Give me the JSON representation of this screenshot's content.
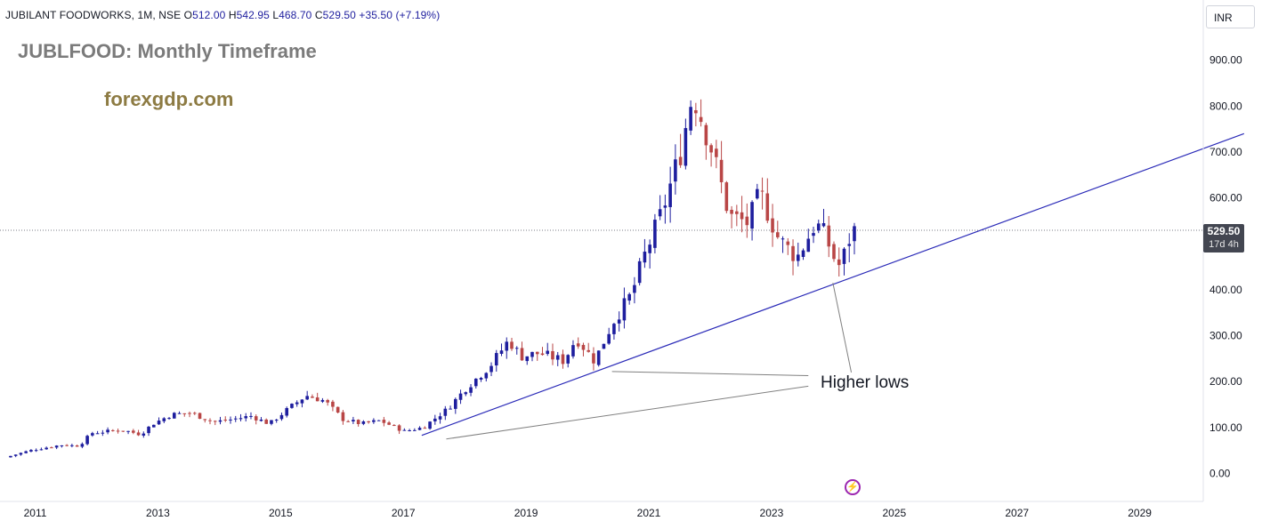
{
  "header": {
    "symbol": "JUBILANT FOODWORKS, 1M, NSE",
    "open_label": "O",
    "open": "512.00",
    "high_label": "H",
    "high": "542.95",
    "low_label": "L",
    "low": "468.70",
    "close_label": "C",
    "close": "529.50",
    "change": "+35.50 (+7.19%)"
  },
  "overlay": {
    "title": "JUBLFOOD: Monthly Timeframe",
    "site": "forexgdp.com",
    "annotation": "Higher lows",
    "currency": "INR",
    "last_price": "529.50",
    "countdown": "17d 4h",
    "bolt_icon": "lightning-icon"
  },
  "colors": {
    "up": "#1e1e9e",
    "down": "#b94646",
    "trendline": "#2b2bb8",
    "annotation_line": "#808080",
    "last_price_line": "#787b86"
  },
  "chart_data": {
    "type": "candlestick",
    "interval": "1M",
    "ylim": [
      -50,
      930
    ],
    "yticks": [
      "0.00",
      "100.00",
      "200.00",
      "300.00",
      "400.00",
      "500.00",
      "600.00",
      "700.00",
      "800.00",
      "900.00"
    ],
    "yticks_values": [
      0,
      100,
      200,
      300,
      400,
      500,
      600,
      700,
      800,
      900
    ],
    "xlim": [
      2010.6,
      2030.7
    ],
    "xticks": [
      "2011",
      "2013",
      "2015",
      "2017",
      "2019",
      "2021",
      "2023",
      "2025",
      "2027",
      "2029"
    ],
    "xticks_values": [
      2011,
      2013,
      2015,
      2017,
      2019,
      2021,
      2023,
      2025,
      2027,
      2029
    ],
    "last_price": 529.5,
    "anchors": [
      [
        2010.6,
        35
      ],
      [
        2011.0,
        50
      ],
      [
        2011.5,
        62
      ],
      [
        2011.8,
        60
      ],
      [
        2012.0,
        88
      ],
      [
        2012.5,
        95
      ],
      [
        2012.8,
        85
      ],
      [
        2013.0,
        108
      ],
      [
        2013.3,
        128
      ],
      [
        2013.6,
        132
      ],
      [
        2014.0,
        112
      ],
      [
        2014.3,
        118
      ],
      [
        2014.6,
        125
      ],
      [
        2014.9,
        108
      ],
      [
        2015.2,
        140
      ],
      [
        2015.5,
        170
      ],
      [
        2015.8,
        158
      ],
      [
        2016.1,
        118
      ],
      [
        2016.4,
        108
      ],
      [
        2016.7,
        115
      ],
      [
        2017.1,
        92
      ],
      [
        2017.4,
        100
      ],
      [
        2017.8,
        140
      ],
      [
        2018.1,
        185
      ],
      [
        2018.5,
        235
      ],
      [
        2018.8,
        290
      ],
      [
        2019.0,
        255
      ],
      [
        2019.3,
        262
      ],
      [
        2019.7,
        245
      ],
      [
        2019.9,
        295
      ],
      [
        2020.2,
        245
      ],
      [
        2020.5,
        330
      ],
      [
        2020.8,
        390
      ],
      [
        2021.0,
        470
      ],
      [
        2021.3,
        570
      ],
      [
        2021.6,
        700
      ],
      [
        2021.8,
        830
      ],
      [
        2022.1,
        710
      ],
      [
        2022.4,
        560
      ],
      [
        2022.7,
        545
      ],
      [
        2022.9,
        610
      ],
      [
        2023.2,
        510
      ],
      [
        2023.5,
        470
      ],
      [
        2023.8,
        545
      ],
      [
        2023.95,
        520
      ],
      [
        2024.1,
        470
      ],
      [
        2024.2,
        450
      ],
      [
        2024.4,
        530
      ]
    ],
    "trendline": {
      "from": [
        2017.3,
        83
      ],
      "to": [
        2030.7,
        740
      ]
    },
    "annotation_lines": [
      {
        "from": [
          2020.4,
          222
        ],
        "to": [
          2023.6,
          213
        ]
      },
      {
        "from": [
          2017.7,
          75
        ],
        "to": [
          2023.6,
          190
        ]
      },
      {
        "from": [
          2024.0,
          415
        ],
        "to": [
          2024.3,
          220
        ]
      }
    ]
  }
}
